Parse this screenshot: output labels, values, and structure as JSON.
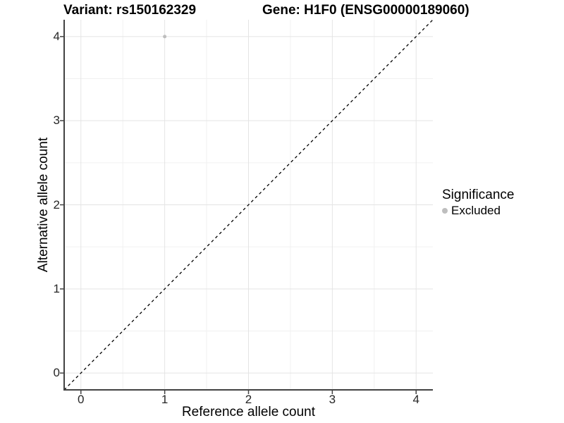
{
  "figure": {
    "title_variant": "Variant: rs150162329",
    "title_gene": "Gene: H1F0 (ENSG00000189060)"
  },
  "legend": {
    "title": "Significance",
    "items": [
      {
        "label": "Excluded",
        "color": "#bebebe"
      }
    ]
  },
  "chart_data": {
    "type": "scatter",
    "title": "Variant: rs150162329    Gene: H1F0 (ENSG00000189060)",
    "xlabel": "Reference allele count",
    "ylabel": "Alternative allele count",
    "xlim": [
      -0.2,
      4.2
    ],
    "ylim": [
      -0.2,
      4.2
    ],
    "xticks": [
      0,
      1,
      2,
      3,
      4
    ],
    "yticks": [
      0,
      1,
      2,
      3,
      4
    ],
    "x_minor_ticks": [
      0.5,
      1.5,
      2.5,
      3.5
    ],
    "y_minor_ticks": [
      0.5,
      1.5,
      2.5,
      3.5
    ],
    "grid": true,
    "legend_position": "right",
    "legend_title": "Significance",
    "series": [
      {
        "name": "Excluded",
        "color": "#bebebe",
        "point_radius": 2.5,
        "points": [
          {
            "x": 1,
            "y": 4
          }
        ]
      }
    ],
    "reference_line": {
      "description": "identity line y = x, dashed black",
      "from": {
        "x": -0.2,
        "y": -0.2
      },
      "to": {
        "x": 4.2,
        "y": 4.2
      },
      "style": "dashed",
      "color": "#000000"
    },
    "colors": {
      "background": "#ffffff",
      "panel_background": "#ffffff",
      "grid_major": "#e4e4e4",
      "grid_minor": "#f1f1f1",
      "axis_line": "#424242",
      "tick_text": "#262626",
      "point": "#bebebe"
    }
  }
}
